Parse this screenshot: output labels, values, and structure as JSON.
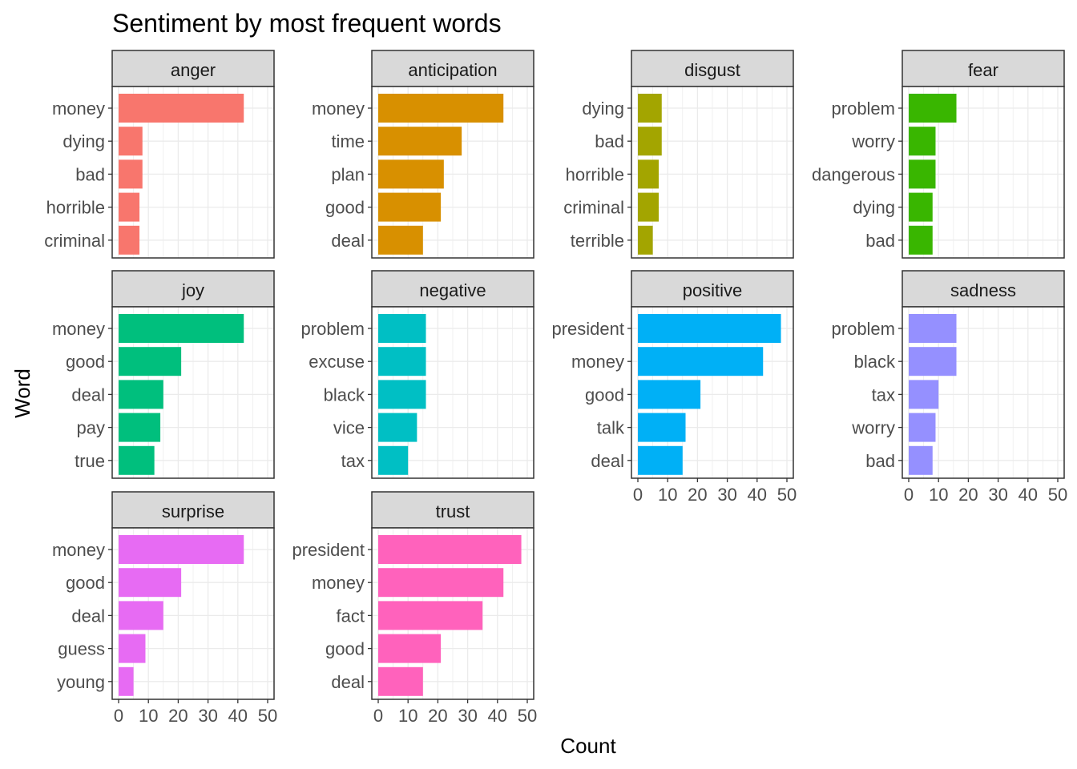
{
  "chart_data": {
    "type": "bar",
    "title": "Sentiment by most frequent words",
    "xlabel": "Count",
    "ylabel": "Word",
    "xlim": [
      0,
      50
    ],
    "x_ticks": [
      "0",
      "10",
      "20",
      "30",
      "40",
      "50"
    ],
    "grid": true,
    "legend": "none",
    "panels": [
      {
        "facet": "anger",
        "color": "#F8766D",
        "words": [
          "money",
          "dying",
          "bad",
          "horrible",
          "criminal"
        ],
        "values": [
          42,
          8,
          8,
          7,
          7
        ]
      },
      {
        "facet": "anticipation",
        "color": "#D89000",
        "words": [
          "money",
          "time",
          "plan",
          "good",
          "deal"
        ],
        "values": [
          42,
          28,
          22,
          21,
          15
        ]
      },
      {
        "facet": "disgust",
        "color": "#A3A500",
        "words": [
          "dying",
          "bad",
          "horrible",
          "criminal",
          "terrible"
        ],
        "values": [
          8,
          8,
          7,
          7,
          5
        ]
      },
      {
        "facet": "fear",
        "color": "#39B600",
        "words": [
          "problem",
          "worry",
          "dangerous",
          "dying",
          "bad"
        ],
        "values": [
          16,
          9,
          9,
          8,
          8
        ]
      },
      {
        "facet": "joy",
        "color": "#00BF7D",
        "words": [
          "money",
          "good",
          "deal",
          "pay",
          "true"
        ],
        "values": [
          42,
          21,
          15,
          14,
          12
        ]
      },
      {
        "facet": "negative",
        "color": "#00BFC4",
        "words": [
          "problem",
          "excuse",
          "black",
          "vice",
          "tax"
        ],
        "values": [
          16,
          16,
          16,
          13,
          10
        ]
      },
      {
        "facet": "positive",
        "color": "#00B0F6",
        "words": [
          "president",
          "money",
          "good",
          "talk",
          "deal"
        ],
        "values": [
          48,
          42,
          21,
          16,
          15
        ]
      },
      {
        "facet": "sadness",
        "color": "#9590FF",
        "words": [
          "problem",
          "black",
          "tax",
          "worry",
          "bad"
        ],
        "values": [
          16,
          16,
          10,
          9,
          8
        ]
      },
      {
        "facet": "surprise",
        "color": "#E76BF3",
        "words": [
          "money",
          "good",
          "deal",
          "guess",
          "young"
        ],
        "values": [
          42,
          21,
          15,
          9,
          5
        ]
      },
      {
        "facet": "trust",
        "color": "#FF62BC",
        "words": [
          "president",
          "money",
          "fact",
          "good",
          "deal"
        ],
        "values": [
          48,
          42,
          35,
          21,
          15
        ]
      }
    ]
  }
}
